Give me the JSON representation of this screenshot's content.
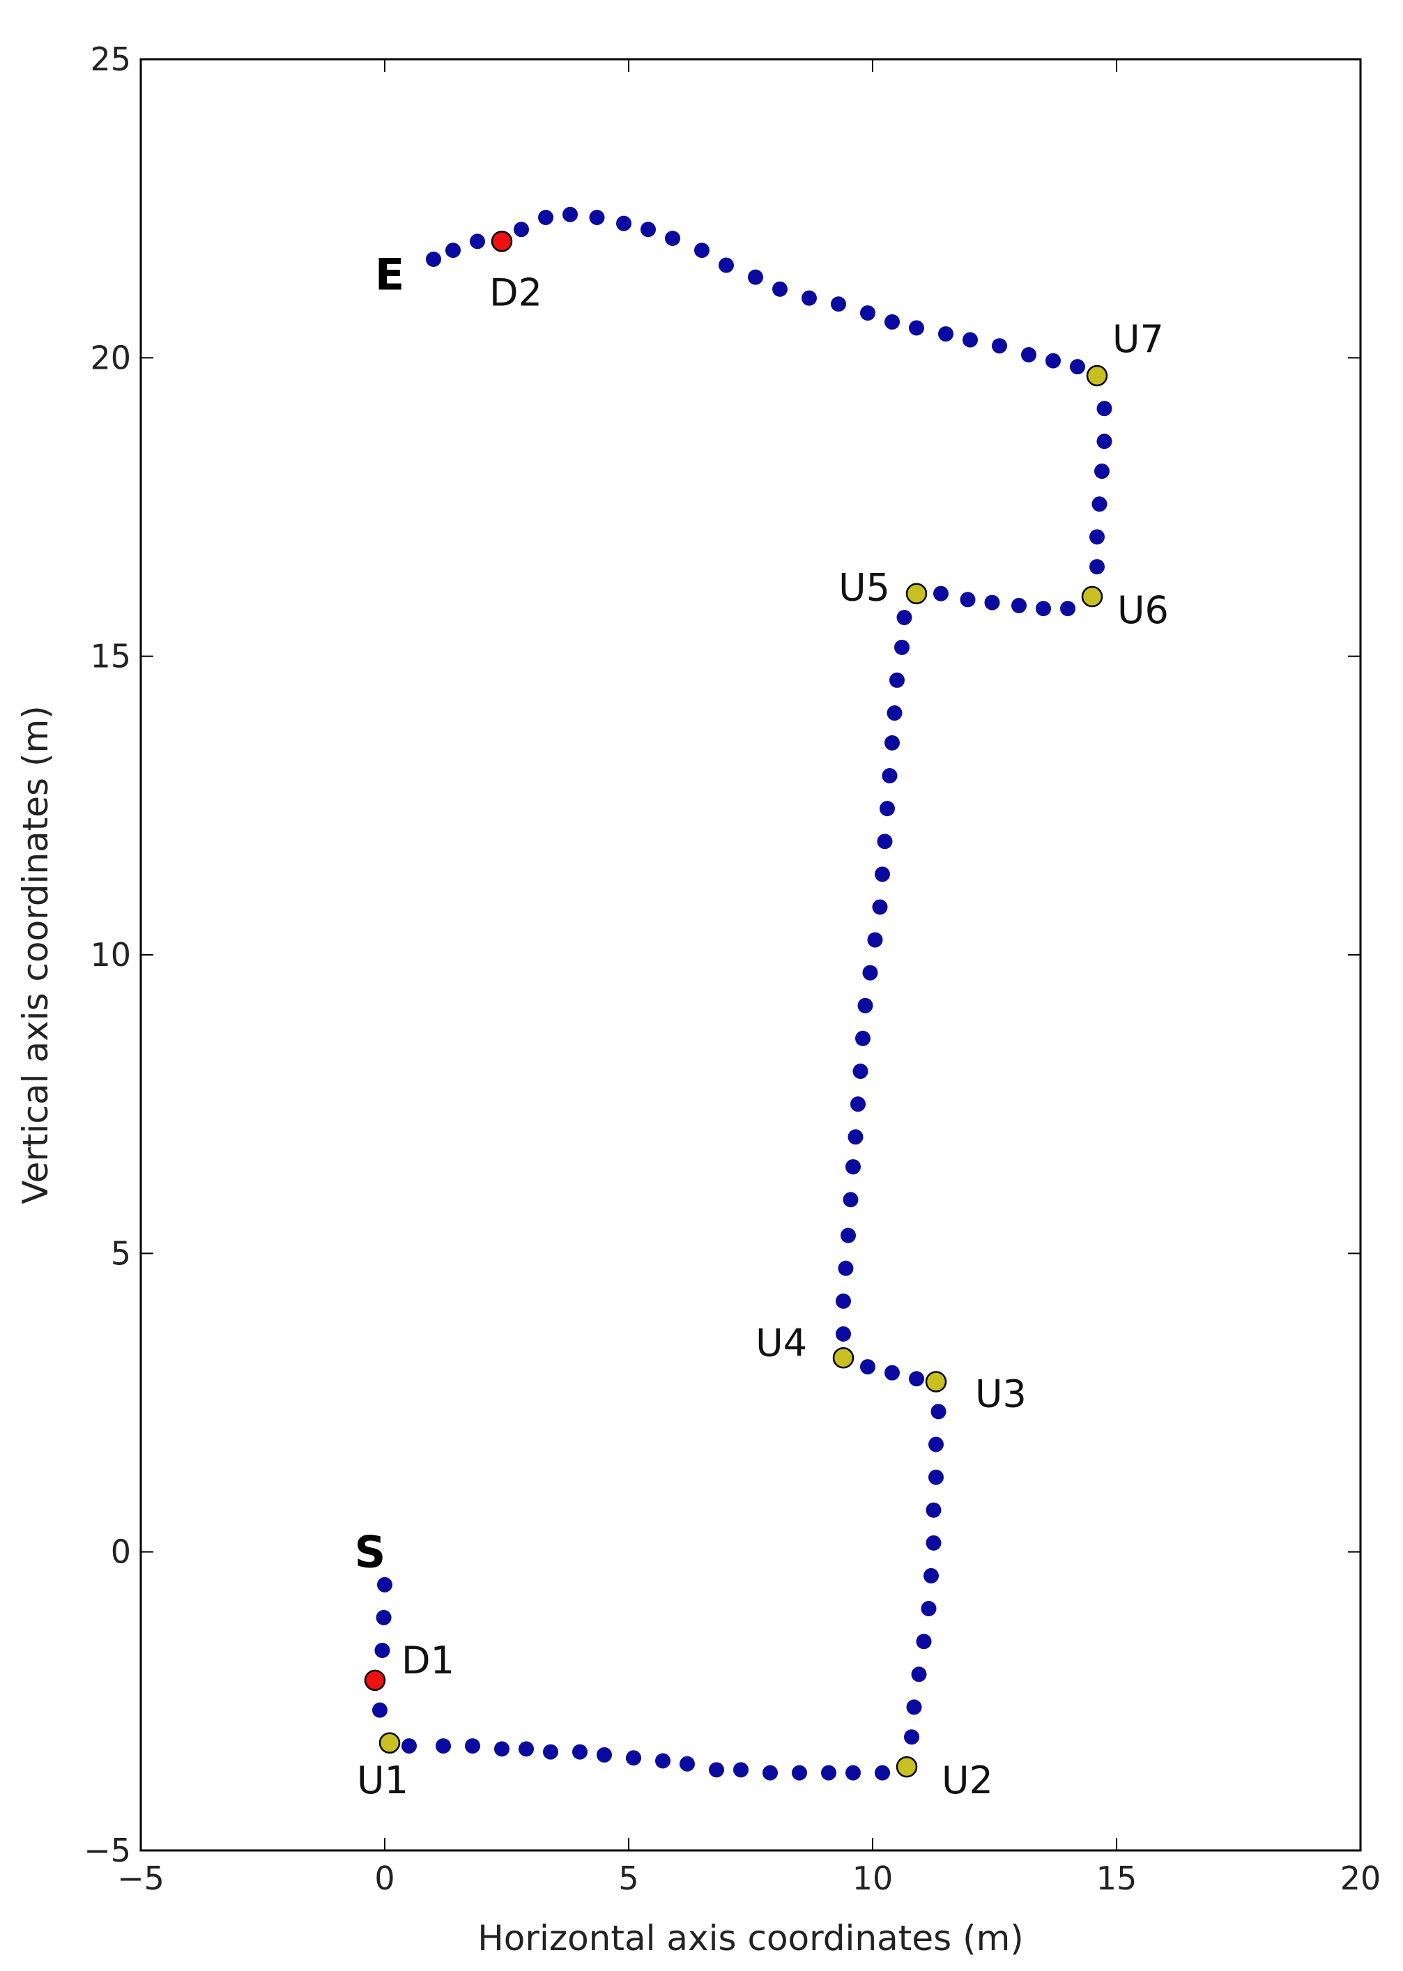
{
  "chart_data": {
    "type": "scatter",
    "title": "",
    "xlabel": "Horizontal axis coordinates (m)",
    "ylabel": "Vertical axis coordinates (m)",
    "xlim": [
      -5,
      20
    ],
    "ylim": [
      -5,
      25
    ],
    "xticks": [
      -5,
      0,
      5,
      10,
      15,
      20
    ],
    "yticks": [
      -5,
      0,
      5,
      10,
      15,
      20,
      25
    ],
    "xtick_labels": [
      "−5",
      "0",
      "5",
      "10",
      "15",
      "20"
    ],
    "ytick_labels": [
      "−5",
      "0",
      "5",
      "10",
      "15",
      "20",
      "25"
    ],
    "grid": false,
    "colors": {
      "path": "#0a0aa0",
      "special_u": "#c8c020",
      "special_d": "#ee1111"
    },
    "path_points": [
      [
        0.0,
        -0.55
      ],
      [
        -0.02,
        -1.1
      ],
      [
        -0.05,
        -1.65
      ],
      [
        -0.1,
        -2.65
      ],
      [
        0.5,
        -3.25
      ],
      [
        1.2,
        -3.25
      ],
      [
        1.8,
        -3.25
      ],
      [
        2.4,
        -3.3
      ],
      [
        2.9,
        -3.3
      ],
      [
        3.4,
        -3.35
      ],
      [
        4.0,
        -3.35
      ],
      [
        4.5,
        -3.4
      ],
      [
        5.1,
        -3.45
      ],
      [
        5.7,
        -3.5
      ],
      [
        6.2,
        -3.55
      ],
      [
        6.8,
        -3.65
      ],
      [
        7.3,
        -3.65
      ],
      [
        7.9,
        -3.7
      ],
      [
        8.5,
        -3.7
      ],
      [
        9.1,
        -3.7
      ],
      [
        9.6,
        -3.7
      ],
      [
        10.2,
        -3.7
      ],
      [
        10.8,
        -3.1
      ],
      [
        10.85,
        -2.6
      ],
      [
        10.95,
        -2.05
      ],
      [
        11.05,
        -1.5
      ],
      [
        11.15,
        -0.95
      ],
      [
        11.2,
        -0.4
      ],
      [
        11.25,
        0.15
      ],
      [
        11.25,
        0.7
      ],
      [
        11.3,
        1.25
      ],
      [
        11.3,
        1.8
      ],
      [
        11.35,
        2.35
      ],
      [
        10.9,
        2.9
      ],
      [
        10.4,
        3.0
      ],
      [
        9.9,
        3.1
      ],
      [
        9.4,
        3.65
      ],
      [
        9.4,
        4.2
      ],
      [
        9.45,
        4.75
      ],
      [
        9.5,
        5.3
      ],
      [
        9.55,
        5.9
      ],
      [
        9.6,
        6.45
      ],
      [
        9.65,
        6.95
      ],
      [
        9.7,
        7.5
      ],
      [
        9.75,
        8.05
      ],
      [
        9.8,
        8.6
      ],
      [
        9.85,
        9.15
      ],
      [
        9.95,
        9.7
      ],
      [
        10.05,
        10.25
      ],
      [
        10.15,
        10.8
      ],
      [
        10.2,
        11.35
      ],
      [
        10.25,
        11.9
      ],
      [
        10.3,
        12.45
      ],
      [
        10.35,
        13.0
      ],
      [
        10.4,
        13.55
      ],
      [
        10.45,
        14.05
      ],
      [
        10.5,
        14.6
      ],
      [
        10.6,
        15.15
      ],
      [
        10.65,
        15.65
      ],
      [
        11.4,
        16.05
      ],
      [
        11.95,
        15.95
      ],
      [
        12.45,
        15.9
      ],
      [
        13.0,
        15.85
      ],
      [
        13.5,
        15.8
      ],
      [
        14.0,
        15.8
      ],
      [
        14.6,
        16.5
      ],
      [
        14.6,
        17.0
      ],
      [
        14.65,
        17.55
      ],
      [
        14.7,
        18.1
      ],
      [
        14.75,
        18.6
      ],
      [
        14.75,
        19.15
      ],
      [
        14.2,
        19.85
      ],
      [
        13.7,
        19.95
      ],
      [
        13.2,
        20.05
      ],
      [
        12.6,
        20.2
      ],
      [
        12.0,
        20.3
      ],
      [
        11.5,
        20.4
      ],
      [
        10.9,
        20.5
      ],
      [
        10.4,
        20.6
      ],
      [
        9.9,
        20.75
      ],
      [
        9.3,
        20.9
      ],
      [
        8.7,
        21.0
      ],
      [
        8.1,
        21.15
      ],
      [
        7.6,
        21.35
      ],
      [
        7.0,
        21.55
      ],
      [
        6.5,
        21.8
      ],
      [
        5.9,
        22.0
      ],
      [
        5.4,
        22.15
      ],
      [
        4.9,
        22.25
      ],
      [
        4.35,
        22.35
      ],
      [
        3.8,
        22.4
      ],
      [
        3.3,
        22.35
      ],
      [
        2.8,
        22.15
      ],
      [
        1.9,
        21.95
      ],
      [
        1.4,
        21.8
      ],
      [
        1.0,
        21.65
      ]
    ],
    "labeled_points": [
      {
        "label": "D1",
        "x": -0.2,
        "y": -2.15,
        "kind": "d"
      },
      {
        "label": "U1",
        "x": 0.1,
        "y": -3.2,
        "kind": "u"
      },
      {
        "label": "U2",
        "x": 10.7,
        "y": -3.6,
        "kind": "u"
      },
      {
        "label": "U3",
        "x": 11.3,
        "y": 2.85,
        "kind": "u"
      },
      {
        "label": "U4",
        "x": 9.4,
        "y": 3.25,
        "kind": "u"
      },
      {
        "label": "U5",
        "x": 10.9,
        "y": 16.05,
        "kind": "u"
      },
      {
        "label": "U6",
        "x": 14.5,
        "y": 16.0,
        "kind": "u"
      },
      {
        "label": "U7",
        "x": 14.6,
        "y": 19.7,
        "kind": "u"
      },
      {
        "label": "D2",
        "x": 2.4,
        "y": 21.95,
        "kind": "d"
      }
    ],
    "endpoint_labels": [
      {
        "label": "S",
        "x": -0.3,
        "y": 0.0
      },
      {
        "label": "E",
        "x": 0.1,
        "y": 21.4
      }
    ]
  }
}
